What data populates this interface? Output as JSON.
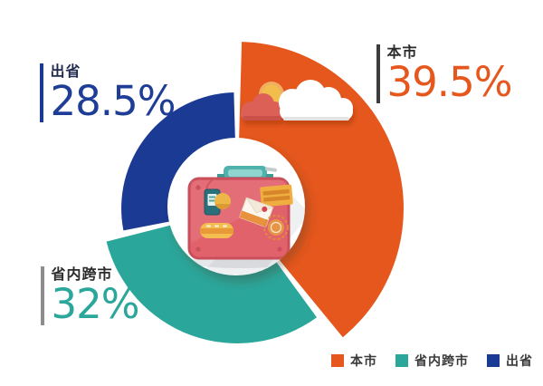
{
  "chart_data": {
    "type": "pie",
    "variant": "rose-donut",
    "title": "",
    "categories": [
      "本市",
      "省内跨市",
      "出省"
    ],
    "series": [
      {
        "key": "local-city",
        "name": "本市",
        "value": 39.5,
        "display": "39.5%",
        "color": "#E5571D",
        "radius": 184
      },
      {
        "key": "intra-province",
        "name": "省内跨市",
        "value": 32,
        "display": "32%",
        "color": "#2BA69B",
        "radius": 149
      },
      {
        "key": "out-of-province",
        "name": "出省",
        "value": 28.5,
        "display": "28.5%",
        "color": "#1B3A94",
        "radius": 128
      }
    ],
    "start_angle_deg": 0,
    "clockwise": true,
    "gap_deg": 3.2,
    "center": {
      "x": 262,
      "y": 230
    },
    "hole_radius": 76,
    "legend_position": "bottom-right",
    "center_icon": "suitcase-icon",
    "decor_icons": [
      "sun-icon",
      "coral-cloud-icon",
      "white-cloud-icon"
    ]
  },
  "callouts": {
    "local": {
      "label": "本市",
      "value": "39.5%",
      "label_color": "#2B2B2B",
      "value_color": "#E5571D",
      "bar_color": "#3C3C3C"
    },
    "intra": {
      "label": "省内跨市",
      "value": "32%",
      "label_color": "#2B2B2B",
      "value_color": "#2BA69B",
      "bar_color": "#8C8C8C"
    },
    "out": {
      "label": "出省",
      "value": "28.5%",
      "label_color": "#1F2A4E",
      "value_color": "#1E3D96",
      "bar_color": "#1B3A94"
    }
  }
}
